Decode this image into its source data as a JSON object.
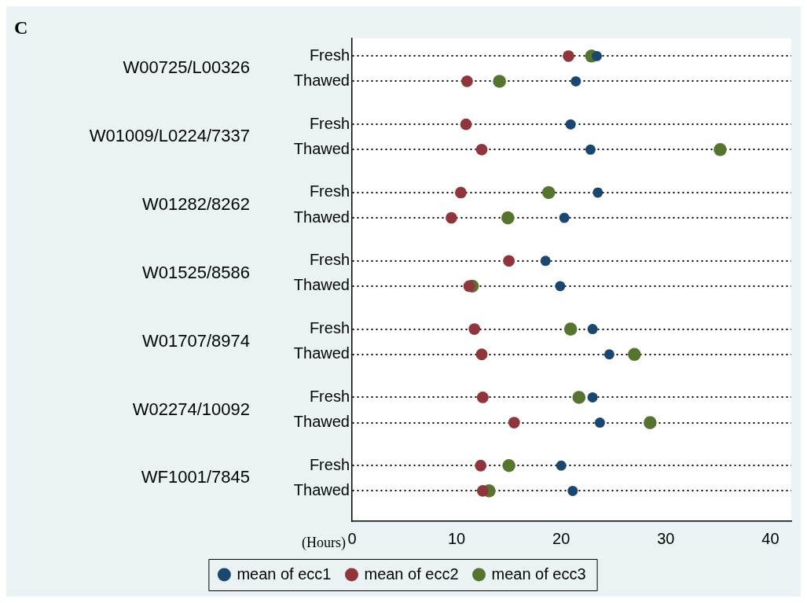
{
  "chart_data": {
    "type": "scatter",
    "title": "C",
    "xlabel": "(Hours)",
    "orientation": "horizontal",
    "categories": [
      "Fresh",
      "Thawed",
      "Fresh",
      "Thawed",
      "Fresh",
      "Thawed",
      "Fresh",
      "Thawed",
      "Fresh",
      "Thawed",
      "Fresh",
      "Thawed",
      "Fresh",
      "Thawed"
    ],
    "annotations": [
      "W00725/L00326",
      "W01009/L0224/7337",
      "W01282/8262",
      "W01525/8586",
      "W01707/8974",
      "W02274/10092",
      "WF1001/7845"
    ],
    "series": [
      {
        "name": "mean of ecc1",
        "color": "#1a476f",
        "values": [
          23.4,
          21.4,
          20.9,
          22.8,
          23.5,
          20.3,
          18.5,
          19.9,
          23.0,
          24.6,
          23.0,
          23.7,
          20.0,
          21.1
        ]
      },
      {
        "name": "mean of ecc2",
        "color": "#90353b",
        "values": [
          20.7,
          11.0,
          10.9,
          12.4,
          10.4,
          9.5,
          15.0,
          11.2,
          11.7,
          12.4,
          12.5,
          15.5,
          12.3,
          12.5
        ]
      },
      {
        "name": "mean of ecc3",
        "color": "#55752f",
        "values": [
          22.9,
          14.1,
          null,
          35.2,
          18.8,
          14.9,
          null,
          11.5,
          20.9,
          27.0,
          21.7,
          28.5,
          15.0,
          13.1
        ]
      }
    ],
    "xlim": [
      0,
      42
    ],
    "xticks": [
      0,
      10,
      20,
      30,
      40
    ],
    "grid": "y",
    "line_style": "dotted",
    "marker": "circle",
    "legend": "bottom"
  }
}
